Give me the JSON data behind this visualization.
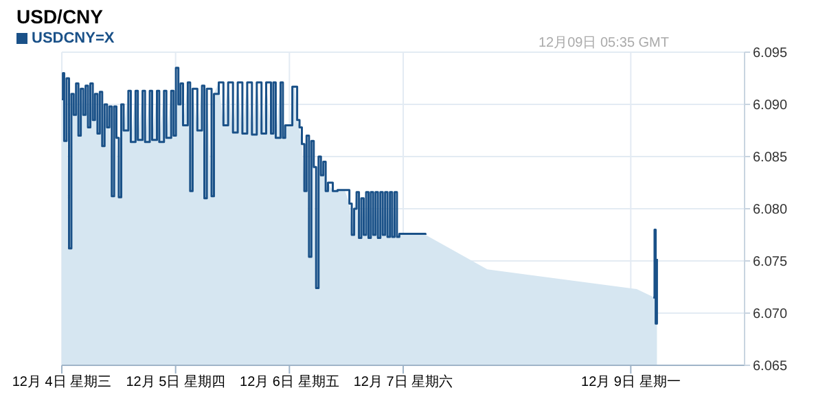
{
  "chart_data": {
    "type": "step",
    "title": "USD/CNY",
    "subtitle": "12月09日 05:35 GMT",
    "legend": "top left",
    "grid": true,
    "xlim": [
      "--12-04",
      "--12-10"
    ],
    "xticks": [
      {
        "value": "--12-04",
        "label": "12月 4日 星期三"
      },
      {
        "value": "--12-05",
        "label": "12月 5日 星期四"
      },
      {
        "value": "--12-06",
        "label": "12月 6日 星期五"
      },
      {
        "value": "--12-07",
        "label": "12月 7日 星期六"
      },
      {
        "value": "--12-09",
        "label": "12月 9日 星期一"
      }
    ],
    "ylim": [
      6.065,
      6.095
    ],
    "yticks": [
      {
        "value": 6.065,
        "label": "6.065"
      },
      {
        "value": 6.07,
        "label": "6.070"
      },
      {
        "value": 6.075,
        "label": "6.075"
      },
      {
        "value": 6.08,
        "label": "6.080"
      },
      {
        "value": 6.085,
        "label": "6.085"
      },
      {
        "value": 6.09,
        "label": "6.090"
      },
      {
        "value": 6.095,
        "label": "6.095"
      }
    ],
    "x": [
      "--12-04T00:00",
      "--12-04T00:14",
      "--12-04T00:30",
      "--12-04T01:00",
      "--12-04T01:31",
      "--12-04T02:01",
      "--12-04T02:30",
      "--12-04T03:00",
      "--12-04T03:30",
      "--12-04T04:00",
      "--12-04T04:31",
      "--12-04T05:01",
      "--12-04T05:31",
      "--12-04T06:01",
      "--12-04T06:32",
      "--12-04T07:00",
      "--12-04T07:31",
      "--12-04T08:01",
      "--12-04T08:31",
      "--12-04T09:01",
      "--12-04T09:32",
      "--12-04T10:02",
      "--12-04T10:32",
      "--12-04T11:02",
      "--12-04T11:31",
      "--12-04T12:01",
      "--12-04T12:32",
      "--12-04T13:02",
      "--12-04T14:02",
      "--12-04T14:33",
      "--12-04T15:33",
      "--12-04T16:02",
      "--12-04T17:02",
      "--12-04T17:33",
      "--12-04T18:33",
      "--12-04T19:03",
      "--12-04T20:04",
      "--12-04T20:33",
      "--12-04T21:33",
      "--12-04T22:03",
      "--12-04T23:04",
      "--12-04T23:34",
      "--12-05T00:04",
      "--12-05T00:35",
      "--12-05T01:03",
      "--12-05T01:34",
      "--12-05T02:34",
      "--12-05T03:04",
      "--12-05T03:35",
      "--12-05T04:35",
      "--12-05T05:34",
      "--12-05T06:04",
      "--12-05T06:35",
      "--12-05T07:35",
      "--12-05T08:05",
      "--12-05T09:06",
      "--12-05T10:05",
      "--12-05T11:05",
      "--12-05T12:06",
      "--12-05T13:06",
      "--12-05T14:05",
      "--12-05T15:06",
      "--12-05T16:06",
      "--12-05T17:07",
      "--12-05T18:07",
      "--12-05T19:06",
      "--12-05T20:07",
      "--12-05T20:37",
      "--12-05T21:07",
      "--12-05T22:08",
      "--12-05T22:38",
      "--12-05T23:07",
      "--12-06T00:07",
      "--12-06T00:37",
      "--12-06T01:08",
      "--12-06T01:38",
      "--12-06T02:08",
      "--12-06T02:38",
      "--12-06T03:09",
      "--12-06T03:37",
      "--12-06T04:08",
      "--12-06T04:38",
      "--12-06T05:08",
      "--12-06T05:38",
      "--12-06T06:09",
      "--12-06T06:39",
      "--12-06T07:09",
      "--12-06T07:39",
      "--12-06T08:08",
      "--12-06T09:09",
      "--12-06T10:09",
      "--12-06T10:39",
      "--12-06T11:40",
      "--12-06T12:39",
      "--12-06T13:09",
      "--12-06T13:39",
      "--12-06T14:10",
      "--12-06T14:40",
      "--12-06T15:10",
      "--12-06T15:40",
      "--12-06T16:11",
      "--12-06T16:41",
      "--12-06T17:10",
      "--12-06T17:40",
      "--12-06T18:10",
      "--12-06T18:40",
      "--12-06T19:11",
      "--12-06T19:41",
      "--12-06T20:11",
      "--12-06T20:41",
      "--12-06T21:12",
      "--12-06T21:40",
      "--12-06T22:11",
      "--12-06T22:41",
      "--12-06T23:11",
      "--12-07T04:42",
      "--12-07T10:13",
      "--12-07T17:44",
      "--12-09T01:15",
      "--12-09T04:31",
      "--12-09T04:45",
      "--12-09T05:01",
      "--12-09T05:15",
      "--12-09T05:31"
    ],
    "series": [
      {
        "type": "area",
        "color": "#d6e6f1",
        "values": [
          6.0905,
          6.093,
          6.0865,
          6.0925,
          6.0762,
          6.091,
          6.089,
          6.092,
          6.087,
          6.0915,
          6.089,
          6.0918,
          6.0878,
          6.092,
          6.0885,
          6.091,
          6.0872,
          6.0912,
          6.086,
          6.09,
          6.0878,
          6.0898,
          6.0812,
          6.0898,
          6.0868,
          6.0811,
          6.09,
          6.0875,
          6.0913,
          6.0864,
          6.0913,
          6.0866,
          6.0913,
          6.0864,
          6.0913,
          6.0866,
          6.0913,
          6.0864,
          6.0913,
          6.0868,
          6.0913,
          6.087,
          6.0935,
          6.09,
          6.092,
          6.088,
          6.0921,
          6.0817,
          6.0915,
          6.0875,
          6.0918,
          6.081,
          6.0915,
          6.0812,
          6.091,
          6.0921,
          6.088,
          6.0921,
          6.0873,
          6.0921,
          6.0872,
          6.0921,
          6.0871,
          6.0921,
          6.0872,
          6.0921,
          6.0872,
          6.0921,
          6.0868,
          6.0921,
          6.0868,
          6.088,
          6.088,
          6.0917,
          6.0917,
          6.0885,
          6.0878,
          6.0862,
          6.0817,
          6.087,
          6.0754,
          6.0865,
          6.084,
          6.0724,
          6.085,
          6.0832,
          6.0845,
          6.0817,
          6.0825,
          6.0817,
          6.0818,
          6.0818,
          6.0818,
          6.0805,
          6.0775,
          6.08,
          6.0816,
          6.0772,
          6.081,
          6.0775,
          6.0816,
          6.0772,
          6.0816,
          6.0775,
          6.0816,
          6.0772,
          6.0816,
          6.0775,
          6.0816,
          6.0773,
          6.0816,
          6.0773,
          6.0816,
          6.0773,
          6.0776,
          6.0775,
          6.0761,
          6.0742,
          6.0723,
          6.0716,
          6.0715,
          6.078,
          6.069,
          6.0752
        ]
      },
      {
        "name": "USDCNY=X",
        "color": "#1a5188",
        "values": [
          6.0905,
          6.093,
          6.0865,
          6.0925,
          6.0762,
          6.091,
          6.089,
          6.092,
          6.087,
          6.0915,
          6.089,
          6.0918,
          6.0878,
          6.092,
          6.0885,
          6.091,
          6.0872,
          6.0912,
          6.086,
          6.09,
          6.0878,
          6.0898,
          6.0812,
          6.0898,
          6.0868,
          6.0811,
          6.09,
          6.0875,
          6.0913,
          6.0864,
          6.0913,
          6.0866,
          6.0913,
          6.0864,
          6.0913,
          6.0866,
          6.0913,
          6.0864,
          6.0913,
          6.0868,
          6.0913,
          6.087,
          6.0935,
          6.09,
          6.092,
          6.088,
          6.0921,
          6.0817,
          6.0915,
          6.0875,
          6.0918,
          6.081,
          6.0915,
          6.0812,
          6.091,
          6.0921,
          6.088,
          6.0921,
          6.0873,
          6.0921,
          6.0872,
          6.0921,
          6.0871,
          6.0921,
          6.0872,
          6.0921,
          6.0872,
          6.0921,
          6.0868,
          6.0921,
          6.0868,
          6.088,
          6.088,
          6.0917,
          6.0917,
          6.0885,
          6.0878,
          6.0862,
          6.0817,
          6.087,
          6.0754,
          6.0865,
          6.084,
          6.0724,
          6.085,
          6.0832,
          6.0845,
          6.0817,
          6.0825,
          6.0817,
          6.0818,
          6.0818,
          6.0818,
          6.0805,
          6.0775,
          6.08,
          6.0816,
          6.0772,
          6.081,
          6.0775,
          6.0816,
          6.0772,
          6.0816,
          6.0775,
          6.0816,
          6.0772,
          6.0816,
          6.0775,
          6.0816,
          6.0773,
          6.0816,
          6.0773,
          6.0816,
          6.0773,
          6.0776,
          6.0775,
          null,
          null,
          null,
          null,
          6.0715,
          6.078,
          6.069,
          6.0752
        ]
      }
    ]
  }
}
